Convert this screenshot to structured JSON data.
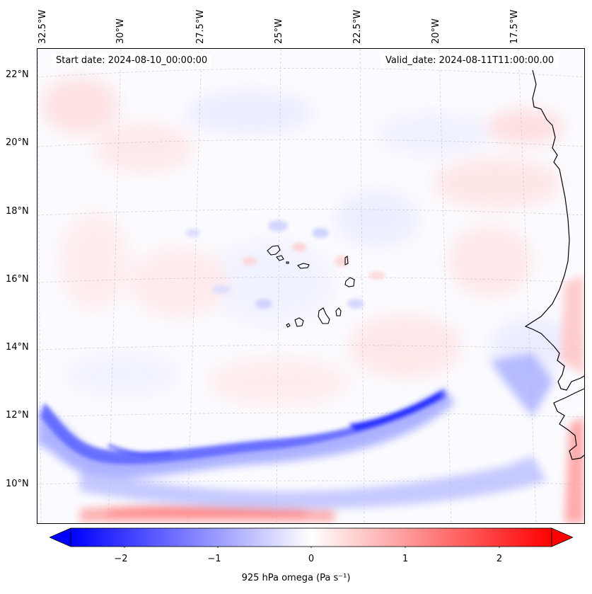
{
  "map": {
    "title_left": "Start date: 2024-08-10_00:00:00",
    "title_right": "Valid_date: 2024-08-11T11:00:00.00",
    "lon_labels": [
      "32.5°W",
      "30°W",
      "27.5°W",
      "25°W",
      "22.5°W",
      "20°W",
      "17.5°W"
    ],
    "lat_labels": [
      "22°N",
      "20°N",
      "18°N",
      "16°N",
      "14°N",
      "12°N",
      "10°N"
    ],
    "gridlines": true,
    "field": "925 hPa omega",
    "colormap": [
      "#0000ff",
      "#ffffff",
      "#ff0000"
    ],
    "coastline_color": "#000000"
  },
  "colorbar": {
    "label": "925 hPa omega (Pa s$^{-1}$)",
    "label_display": "925 hPa omega (Pa s⁻¹)",
    "ticks": [
      "−2",
      "−1",
      "0",
      "1",
      "2"
    ],
    "range": [
      -2.7,
      2.7
    ],
    "extend": "both"
  }
}
